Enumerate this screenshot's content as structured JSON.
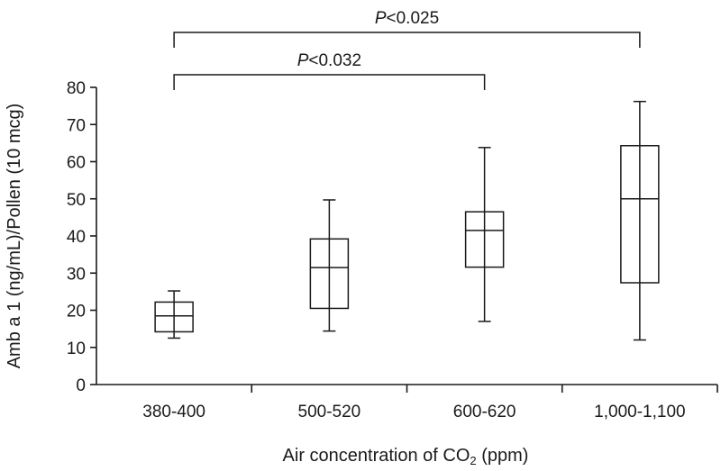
{
  "chart_data": {
    "type": "box",
    "xlabel": {
      "prefix": "Air concentration of CO",
      "subscript": "2",
      "suffix": " (ppm)"
    },
    "ylabel": "Amb a 1 (ng/mL)/Pollen (10 mcg)",
    "ylim": [
      0,
      80
    ],
    "yticks": [
      0,
      10,
      20,
      30,
      40,
      50,
      60,
      70,
      80
    ],
    "categories": [
      "380-400",
      "500-520",
      "600-620",
      "1,000-1,100"
    ],
    "boxes": [
      {
        "category": "380-400",
        "min": 12.5,
        "q1": 14.2,
        "median": 18.5,
        "q3": 22.2,
        "max": 25.2
      },
      {
        "category": "500-520",
        "min": 14.4,
        "q1": 20.5,
        "median": 31.5,
        "q3": 39.2,
        "max": 49.7
      },
      {
        "category": "600-620",
        "min": 17.0,
        "q1": 31.6,
        "median": 41.5,
        "q3": 46.5,
        "max": 63.8
      },
      {
        "category": "1,000-1,100",
        "min": 12.0,
        "q1": 27.4,
        "median": 50.0,
        "q3": 64.3,
        "max": 76.2
      }
    ],
    "annotations": [
      {
        "from": "380-400",
        "to": "600-620",
        "p_symbol": "P",
        "text": "<0.032",
        "level": 1
      },
      {
        "from": "380-400",
        "to": "1,000-1,100",
        "p_symbol": "P",
        "text": "<0.025",
        "level": 2
      }
    ],
    "grid": false,
    "legend": "none"
  }
}
